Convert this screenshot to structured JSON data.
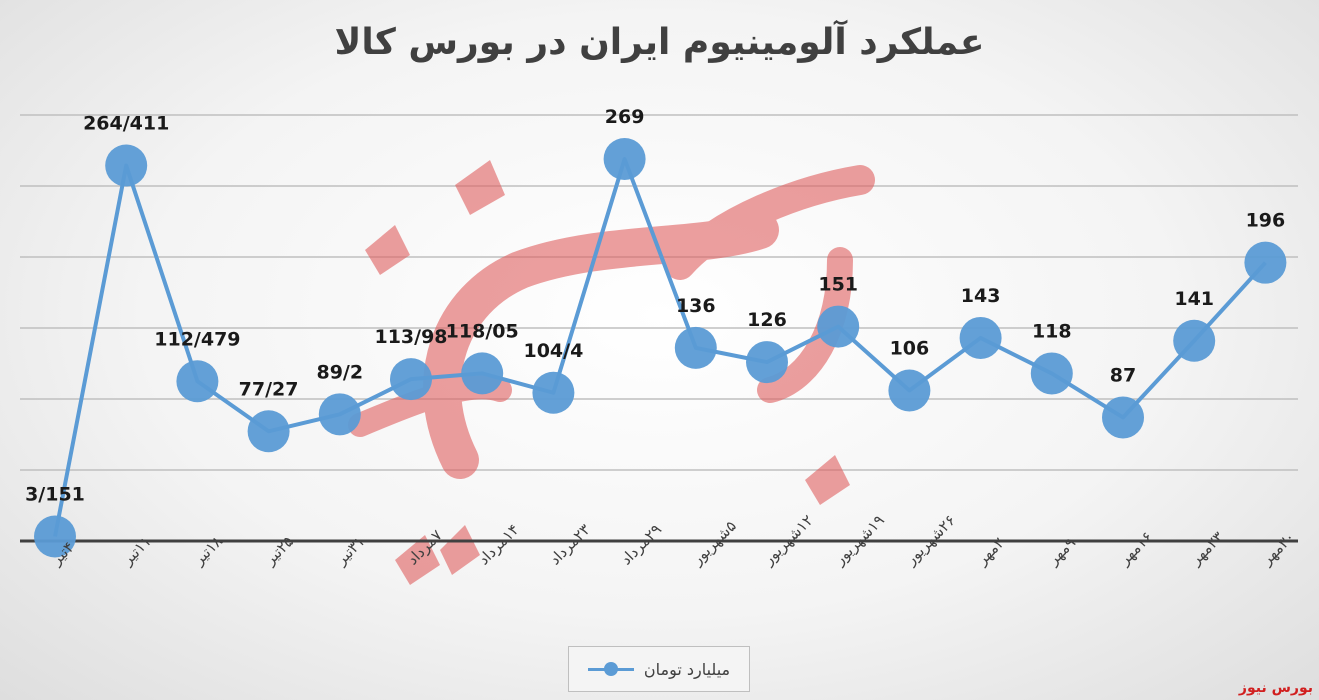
{
  "title": "عملکرد آلومینیوم ایران در بورس کالا",
  "source_mark": "بورس نیوز",
  "colors": {
    "series": "#5b9bd5",
    "watermark": "#e06060",
    "axis": "#404040",
    "grid": "#bfbfbf"
  },
  "chart_data": {
    "type": "line",
    "title": "عملکرد آلومینیوم ایران در بورس کالا",
    "xlabel": "",
    "ylabel": "",
    "ylim": [
      0,
      300
    ],
    "grid": true,
    "legend": "bottom",
    "categories": [
      "۴تیر",
      "۱۱تیر",
      "۱۸تیر",
      "۲۵تیر",
      "۳۱تیر",
      "۷مرداد",
      "۱۴مرداد",
      "۲۳مرداد",
      "۲۹مرداد",
      "۵شهریور",
      "۱۲شهریور",
      "۱۹شهریور",
      "۲۶شهریور",
      "۲مهر",
      "۹مهر",
      "۱۶مهر",
      "۲۳مهر",
      "۳۰مهر"
    ],
    "series": [
      {
        "name": "میلیارد تومان",
        "values": [
          3.151,
          264.411,
          112.479,
          77.27,
          89.2,
          113.98,
          118.05,
          104.4,
          269,
          136,
          126,
          151,
          106,
          143,
          118,
          87,
          141,
          196
        ],
        "labels": [
          "3/151",
          "264/411",
          "112/479",
          "77/27",
          "89/2",
          "113/98",
          "118/05",
          "104/4",
          "269",
          "136",
          "126",
          "151",
          "106",
          "143",
          "118",
          "87",
          "141",
          "196"
        ]
      }
    ]
  }
}
